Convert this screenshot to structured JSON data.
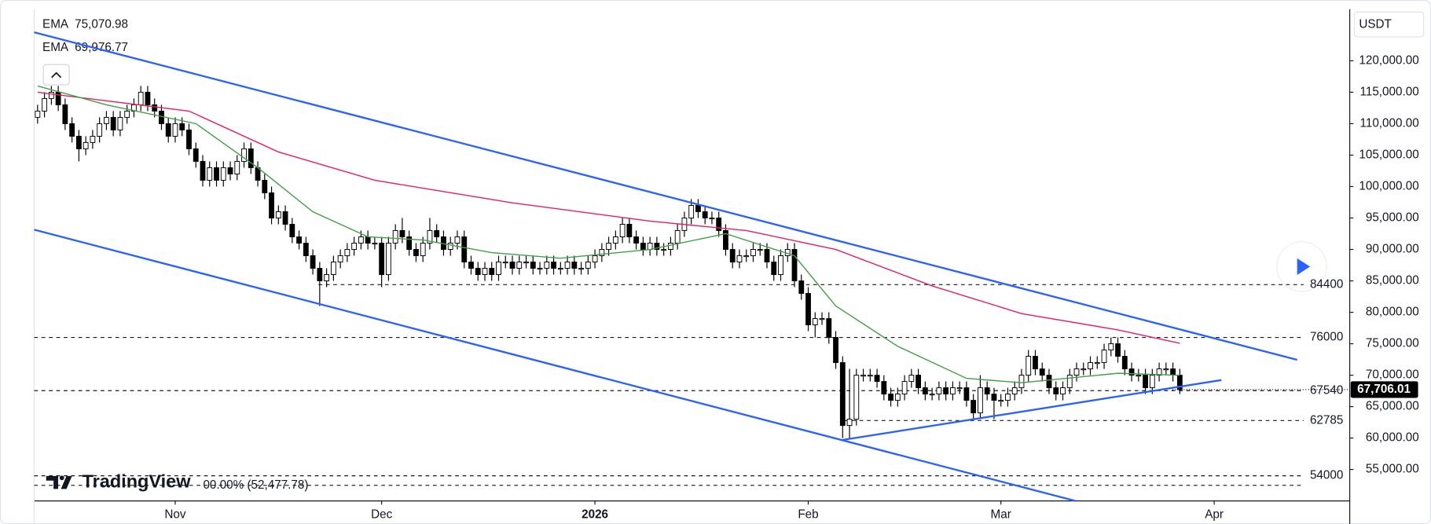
{
  "chart_data": {
    "type": "candlestick",
    "currency": "USDT",
    "brand": "TradingView",
    "xlim": [
      -0.5,
      190.7
    ],
    "xticks": [
      {
        "value": 20,
        "label": "Nov"
      },
      {
        "value": 50,
        "label": "Dec"
      },
      {
        "value": 81,
        "label": "2026"
      },
      {
        "value": 112,
        "label": "Feb"
      },
      {
        "value": 140,
        "label": "Mar"
      },
      {
        "value": 171,
        "label": "Apr"
      }
    ],
    "ylim": [
      50000,
      128200
    ],
    "yticks": [
      {
        "value": 55000,
        "label": "55,000.00"
      },
      {
        "value": 60000,
        "label": "60,000.00"
      },
      {
        "value": 65000,
        "label": "65,000.00"
      },
      {
        "value": 70000,
        "label": "70,000.00"
      },
      {
        "value": 75000,
        "label": "75,000.00"
      },
      {
        "value": 80000,
        "label": "80,000.00"
      },
      {
        "value": 85000,
        "label": "85,000.00"
      },
      {
        "value": 90000,
        "label": "90,000.00"
      },
      {
        "value": 95000,
        "label": "95,000.00"
      },
      {
        "value": 100000,
        "label": "100,000.00"
      },
      {
        "value": 105000,
        "label": "105,000.00"
      },
      {
        "value": 110000,
        "label": "110,000.00"
      },
      {
        "value": 115000,
        "label": "115,000.00"
      },
      {
        "value": 120000,
        "label": "120,000.00"
      }
    ],
    "up_color": "#ffffff",
    "down_color": "#000000",
    "wick_color": "#000000",
    "open": [
      111000,
      112000,
      114000,
      115000,
      113000,
      110000,
      108000,
      106000,
      107000,
      108000,
      110000,
      111000,
      109000,
      111000,
      112000,
      113000,
      115000,
      113000,
      112000,
      110000,
      108000,
      110000,
      109000,
      106000,
      104000,
      101000,
      103000,
      101000,
      103000,
      102000,
      104000,
      106000,
      103000,
      101000,
      99000,
      95000,
      96000,
      94000,
      92000,
      91000,
      89000,
      87000,
      85000,
      86000,
      88000,
      89000,
      90000,
      91000,
      92000,
      91000,
      91000,
      86000,
      91000,
      93000,
      92000,
      90000,
      89000,
      91000,
      93000,
      92000,
      90000,
      91000,
      92000,
      88000,
      87000,
      86000,
      87000,
      86000,
      88000,
      88000,
      87000,
      88000,
      88000,
      87000,
      87000,
      88000,
      87000,
      87000,
      88000,
      87000,
      87000,
      88000,
      89000,
      90000,
      91000,
      92000,
      94000,
      92000,
      91000,
      90000,
      91000,
      90000,
      90000,
      91000,
      93000,
      95000,
      97000,
      96000,
      95000,
      95000,
      93000,
      90000,
      88000,
      89000,
      89000,
      90000,
      90000,
      88000,
      86000,
      89000,
      90000,
      85000,
      83000,
      78000,
      79000,
      79000,
      76000,
      72000,
      62000,
      63000,
      70000,
      70000,
      70000,
      69000,
      67000,
      66000,
      67000,
      69000,
      70000,
      68000,
      67000,
      67000,
      68000,
      67000,
      68000,
      68000,
      66000,
      64000,
      68000,
      67000,
      66000,
      66000,
      67000,
      68000,
      70000,
      73000,
      71000,
      70000,
      68000,
      67000,
      68000,
      70000,
      71000,
      71000,
      72000,
      72000,
      74000,
      75000,
      73000,
      71000,
      70000,
      70000,
      68000,
      70000,
      71000,
      71000,
      70000
    ],
    "high": [
      113000,
      115000,
      116000,
      116000,
      114000,
      111000,
      109000,
      108000,
      109000,
      111000,
      112000,
      112000,
      112000,
      113000,
      114000,
      116000,
      116000,
      114000,
      113000,
      111000,
      111000,
      111000,
      110000,
      107000,
      105000,
      104000,
      104000,
      104000,
      104000,
      105000,
      107000,
      107000,
      104000,
      102000,
      100000,
      97000,
      97000,
      95000,
      93000,
      92000,
      90000,
      88000,
      87000,
      89000,
      90000,
      91000,
      92000,
      93000,
      93000,
      92000,
      92000,
      92000,
      94000,
      95000,
      93000,
      91000,
      92000,
      95000,
      94000,
      93000,
      92000,
      93000,
      93000,
      89000,
      88000,
      88000,
      88000,
      89000,
      89000,
      89000,
      89000,
      89000,
      89000,
      88000,
      89000,
      89000,
      88000,
      89000,
      89000,
      88000,
      89000,
      90000,
      91000,
      92000,
      93000,
      95000,
      95000,
      93000,
      92000,
      92000,
      92000,
      91000,
      92000,
      94000,
      96000,
      98000,
      98000,
      97000,
      96000,
      96000,
      94000,
      91000,
      90000,
      90000,
      91000,
      91000,
      91000,
      89000,
      90000,
      91000,
      91000,
      86000,
      84000,
      80000,
      80000,
      80000,
      77000,
      73000,
      71000,
      71000,
      71000,
      71000,
      71000,
      70000,
      68000,
      68000,
      70000,
      71000,
      71000,
      69000,
      68000,
      69000,
      69000,
      69000,
      69000,
      69000,
      67000,
      70000,
      69000,
      68000,
      67000,
      68000,
      69000,
      71000,
      74000,
      74000,
      72000,
      71000,
      69000,
      69000,
      71000,
      72000,
      72000,
      73000,
      73000,
      75000,
      76000,
      76000,
      74000,
      72000,
      71000,
      71000,
      71000,
      72000,
      72000,
      72000,
      71000
    ],
    "low": [
      110000,
      111000,
      113000,
      112000,
      109000,
      107000,
      104000,
      105000,
      106000,
      107000,
      109000,
      108000,
      108000,
      110000,
      111000,
      112000,
      112000,
      111000,
      109000,
      107000,
      107000,
      108000,
      105000,
      103000,
      100000,
      100000,
      100000,
      100000,
      101000,
      101000,
      103000,
      102000,
      100000,
      98000,
      94000,
      94000,
      93000,
      91000,
      90000,
      88000,
      86000,
      81000,
      84000,
      85000,
      87000,
      88000,
      89000,
      90000,
      90000,
      90000,
      84000,
      85000,
      90000,
      91000,
      89000,
      88000,
      88000,
      90000,
      91000,
      89000,
      89000,
      90000,
      87000,
      86000,
      85000,
      85000,
      85000,
      85000,
      87000,
      86000,
      86000,
      87000,
      86000,
      86000,
      86000,
      86000,
      86000,
      86000,
      86000,
      86000,
      86000,
      87000,
      88000,
      89000,
      90000,
      91000,
      91000,
      90000,
      89000,
      89000,
      89000,
      89000,
      89000,
      90000,
      92000,
      94000,
      95000,
      94000,
      94000,
      92000,
      89000,
      87000,
      87000,
      88000,
      88000,
      89000,
      87000,
      85000,
      85000,
      88000,
      84000,
      82000,
      77000,
      76000,
      78000,
      75000,
      71000,
      60000,
      60000,
      62000,
      69000,
      69000,
      68000,
      66000,
      65000,
      65000,
      66000,
      68000,
      67000,
      66000,
      66000,
      66000,
      66000,
      66000,
      67000,
      65000,
      63000,
      63000,
      66000,
      63000,
      65000,
      65000,
      66000,
      67000,
      69000,
      70000,
      69000,
      67000,
      66000,
      66000,
      67000,
      69000,
      70000,
      70000,
      71000,
      71000,
      73000,
      72000,
      70000,
      69000,
      69000,
      67000,
      67000,
      69000,
      70000,
      69000,
      67000
    ],
    "close": [
      112000,
      114000,
      115000,
      113000,
      110000,
      108000,
      106000,
      107000,
      108000,
      110000,
      111000,
      109000,
      111000,
      112000,
      113000,
      115000,
      113000,
      112000,
      110000,
      108000,
      110000,
      109000,
      106000,
      104000,
      101000,
      103000,
      101000,
      103000,
      102000,
      104000,
      106000,
      103000,
      101000,
      99000,
      95000,
      96000,
      94000,
      92000,
      91000,
      89000,
      87000,
      85000,
      86000,
      88000,
      89000,
      90000,
      91000,
      92000,
      91000,
      91000,
      86000,
      91000,
      93000,
      92000,
      90000,
      89000,
      91000,
      93000,
      92000,
      90000,
      91000,
      92000,
      88000,
      87000,
      86000,
      87000,
      86000,
      88000,
      88000,
      87000,
      88000,
      88000,
      87000,
      87000,
      88000,
      87000,
      87000,
      88000,
      87000,
      87000,
      88000,
      89000,
      90000,
      91000,
      92000,
      94000,
      92000,
      91000,
      90000,
      91000,
      90000,
      90000,
      91000,
      93000,
      95000,
      97000,
      96000,
      95000,
      95000,
      93000,
      90000,
      88000,
      89000,
      89000,
      90000,
      90000,
      88000,
      86000,
      89000,
      90000,
      85000,
      83000,
      78000,
      79000,
      79000,
      76000,
      72000,
      62000,
      63000,
      70000,
      70000,
      70000,
      69000,
      67000,
      66000,
      67000,
      69000,
      70000,
      68000,
      67000,
      67000,
      68000,
      67000,
      68000,
      68000,
      66000,
      64000,
      68000,
      67000,
      66000,
      66000,
      67000,
      68000,
      70000,
      73000,
      71000,
      70000,
      68000,
      67000,
      68000,
      70000,
      71000,
      71000,
      72000,
      72000,
      74000,
      75000,
      73000,
      71000,
      70000,
      70000,
      68000,
      70000,
      71000,
      71000,
      70000,
      67706.01
    ],
    "series": [
      {
        "name": "EMA",
        "type": "line",
        "color": "#e91e63",
        "value_label": "75,070.98",
        "x": [
          0,
          22,
          35,
          49,
          69,
          89,
          103,
          116,
          130,
          143,
          157,
          166
        ],
        "values": [
          115000,
          112000,
          105500,
          101000,
          97400,
          94500,
          93000,
          90000,
          84200,
          79800,
          77200,
          75070.98
        ]
      },
      {
        "name": "EMA",
        "type": "line",
        "color": "#43a047",
        "value_label": "69,976.77",
        "x": [
          0,
          10,
          23,
          32,
          40,
          48,
          56,
          66,
          76,
          89,
          100,
          110,
          116,
          125,
          135,
          143,
          157,
          166
        ],
        "values": [
          116000,
          113000,
          110000,
          103000,
          96000,
          92000,
          91500,
          89500,
          88600,
          90000,
          92500,
          89000,
          81000,
          74600,
          69500,
          68800,
          70300,
          69976.77
        ]
      }
    ],
    "hlines": [
      84400,
      76000,
      67540,
      62785,
      54000
    ],
    "fib_line": {
      "value": 52477.78,
      "label": "00.00% (52,477.78)"
    },
    "last_price": {
      "value": 67706.01,
      "label": "67,706.01"
    }
  }
}
